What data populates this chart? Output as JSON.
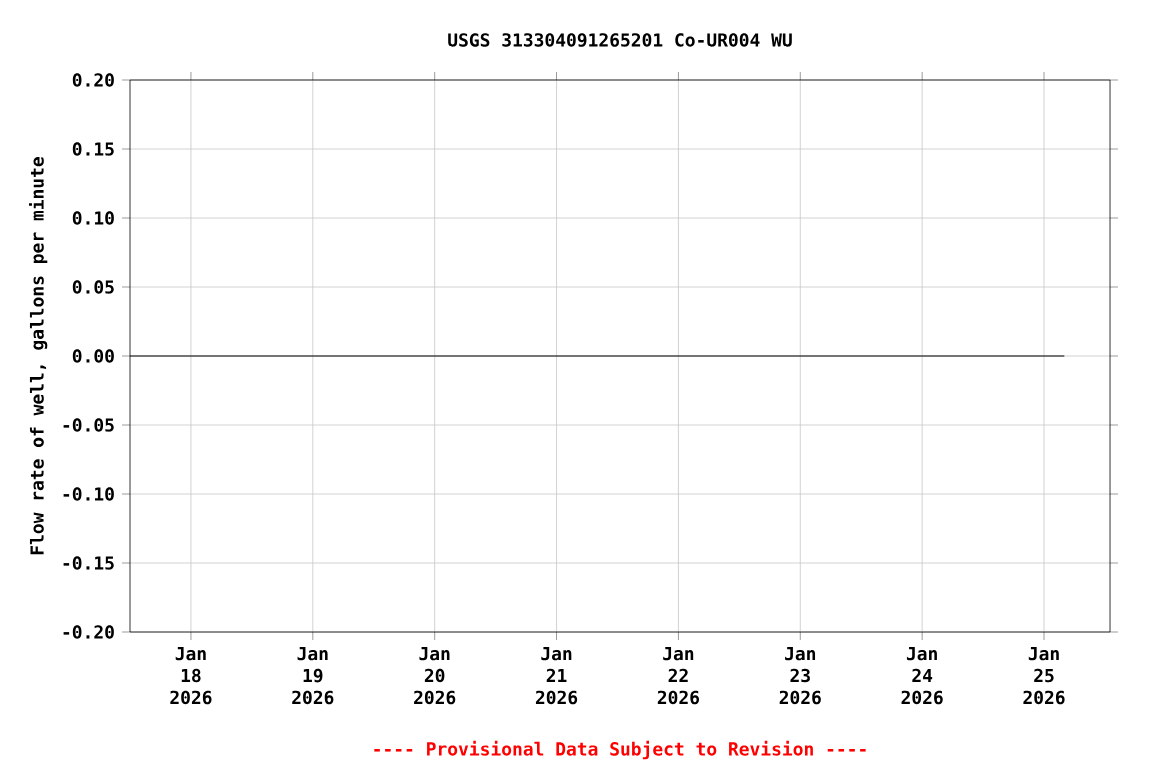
{
  "chart_data": {
    "type": "line",
    "title": "USGS 313304091265201 Co-UR004 WU",
    "ylabel": "Flow rate of well, gallons per minute",
    "annotations": [
      "---- Provisional Data Subject to Revision ----"
    ],
    "series": [
      {
        "color": "#000000",
        "x": [
          "2026-01-17T12:00",
          "2026-01-25T04:00"
        ],
        "values": [
          0,
          0
        ]
      }
    ],
    "xlim": [
      "2026-01-17T12:00",
      "2026-01-25T13:00"
    ],
    "xticks": [
      {
        "value": "2026-01-18",
        "label": "Jan 18 2026"
      },
      {
        "value": "2026-01-19",
        "label": "Jan 19 2026"
      },
      {
        "value": "2026-01-20",
        "label": "Jan 20 2026"
      },
      {
        "value": "2026-01-21",
        "label": "Jan 21 2026"
      },
      {
        "value": "2026-01-22",
        "label": "Jan 22 2026"
      },
      {
        "value": "2026-01-23",
        "label": "Jan 23 2026"
      },
      {
        "value": "2026-01-24",
        "label": "Jan 24 2026"
      },
      {
        "value": "2026-01-25",
        "label": "Jan 25 2026"
      }
    ],
    "ylim": [
      -0.2,
      0.2
    ],
    "yticks": [
      {
        "value": -0.2,
        "label": "-0.20"
      },
      {
        "value": -0.15,
        "label": "-0.15"
      },
      {
        "value": -0.1,
        "label": "-0.10"
      },
      {
        "value": -0.05,
        "label": "-0.05"
      },
      {
        "value": 0,
        "label": "0.00"
      },
      {
        "value": 0.05,
        "label": "0.05"
      },
      {
        "value": 0.1,
        "label": "0.10"
      },
      {
        "value": 0.15,
        "label": "0.15"
      },
      {
        "value": 0.2,
        "label": "0.20"
      }
    ],
    "grid": true,
    "marker": "none",
    "line_style": "solid"
  }
}
